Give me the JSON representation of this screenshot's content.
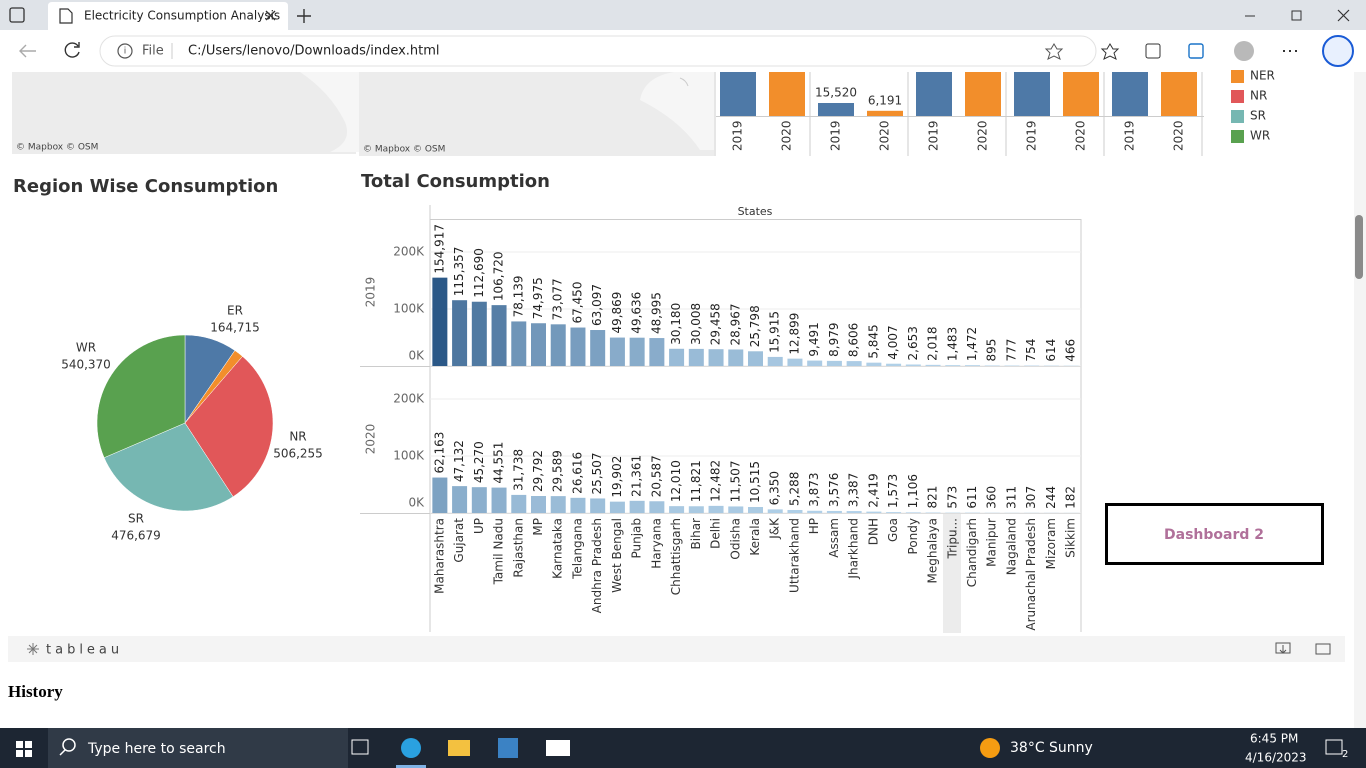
{
  "browser": {
    "tab_title": "Electricity Consumption Analysis",
    "scheme": "File",
    "url": "C:/Users/lenovo/Downloads/index.html"
  },
  "map_credits": [
    "© Mapbox © OSM",
    "© Mapbox © OSM"
  ],
  "region_year_chart": {
    "type": "bar",
    "x": [
      "2019",
      "2020",
      "2019",
      "2020",
      "2019",
      "2020",
      "2019",
      "2020",
      "2019",
      "2020"
    ],
    "values": [
      null,
      null,
      15520,
      6191,
      null,
      null,
      null,
      null,
      null,
      null
    ],
    "value_labels": [
      null,
      null,
      "15,520",
      "6,191",
      null,
      null,
      null,
      null,
      null,
      null
    ],
    "colors": [
      "#4e79a7",
      "#f28e2b"
    ]
  },
  "legend": [
    {
      "name": "NER",
      "color": "#f28e2b"
    },
    {
      "name": "NR",
      "color": "#e15759"
    },
    {
      "name": "SR",
      "color": "#76b7b2"
    },
    {
      "name": "WR",
      "color": "#59a14f"
    }
  ],
  "pie_chart": {
    "type": "pie",
    "title": "Region Wise Consumption",
    "categories": [
      "ER",
      null,
      "NR",
      "SR",
      "WR"
    ],
    "values": [
      164715,
      30000,
      506255,
      476679,
      540370
    ],
    "value_labels": [
      "164,715",
      null,
      "506,255",
      "476,679",
      "540,370"
    ],
    "colors": [
      "#4e79a7",
      "#f28e2b",
      "#e15759",
      "#76b7b2",
      "#59a14f"
    ]
  },
  "bar_chart": {
    "type": "bar",
    "title": "Total Consumption",
    "column_header": "States",
    "categories": [
      "Maharashtra",
      "Gujarat",
      "UP",
      "Tamil Nadu",
      "Rajasthan",
      "MP",
      "Karnataka",
      "Telangana",
      "Andhra Pradesh",
      "West Bengal",
      "Punjab",
      "Haryana",
      "Chhattisgarh",
      "Bihar",
      "Delhi",
      "Odisha",
      "Kerala",
      "J&K",
      "Uttarakhand",
      "HP",
      "Assam",
      "Jharkhand",
      "DNH",
      "Goa",
      "Pondy",
      "Meghalaya",
      "Tripu...",
      "Chandigarh",
      "Manipur",
      "Nagaland",
      "Arunachal Pradesh",
      "Mizoram",
      "Sikkim"
    ],
    "series": [
      {
        "name": "2019",
        "values": [
          154917,
          115357,
          112690,
          106720,
          78139,
          74975,
          73077,
          67450,
          63097,
          49869,
          49636,
          48995,
          30180,
          30008,
          29458,
          28967,
          25798,
          15915,
          12899,
          9491,
          8979,
          8606,
          5845,
          4007,
          2653,
          2018,
          1483,
          1472,
          895,
          777,
          754,
          614,
          466
        ],
        "value_labels": [
          "154,917",
          "115,357",
          "112,690",
          "106,720",
          "78,139",
          "74,975",
          "73,077",
          "67,450",
          "63,097",
          "49,869",
          "49,636",
          "48,995",
          "30,180",
          "30,008",
          "29,458",
          "28,967",
          "25,798",
          "15,915",
          "12,899",
          "9,491",
          "8,979",
          "8,606",
          "5,845",
          "4,007",
          "2,653",
          "2,018",
          "1,483",
          "1,472",
          "895",
          "777",
          "754",
          "614",
          "466"
        ]
      },
      {
        "name": "2020",
        "values": [
          62163,
          47132,
          45270,
          44551,
          31738,
          29792,
          29589,
          26616,
          25507,
          19902,
          21361,
          20587,
          12010,
          11821,
          12482,
          11507,
          10515,
          6350,
          5288,
          3873,
          3576,
          3387,
          2419,
          1573,
          1106,
          821,
          573,
          611,
          360,
          311,
          307,
          244,
          182
        ],
        "value_labels": [
          "62,163",
          "47,132",
          "45,270",
          "44,551",
          "31,738",
          "29,792",
          "29,589",
          "26,616",
          "25,507",
          "19,902",
          "21,361",
          "20,587",
          "12,010",
          "11,821",
          "12,482",
          "11,507",
          "10,515",
          "6,350",
          "5,288",
          "3,873",
          "3,576",
          "3,387",
          "2,419",
          "1,573",
          "1,106",
          "821",
          "573",
          "611",
          "360",
          "311",
          "307",
          "244",
          "182"
        ]
      }
    ],
    "ylim": [
      0,
      256000
    ],
    "yticks": [
      {
        "value": 0,
        "label": "0K"
      },
      {
        "value": 100000,
        "label": "100K"
      },
      {
        "value": 200000,
        "label": "200K"
      }
    ],
    "grid": true,
    "color_scale": [
      "#b4d3ea",
      "#2b5887"
    ]
  },
  "dashboard_button": "Dashboard 2",
  "tableau_logo": "tableau",
  "section_heading": "History",
  "taskbar": {
    "search": "Type here to search",
    "weather": "38°C Sunny",
    "time": "6:45 PM",
    "date": "4/16/2023",
    "notifications": "2"
  }
}
